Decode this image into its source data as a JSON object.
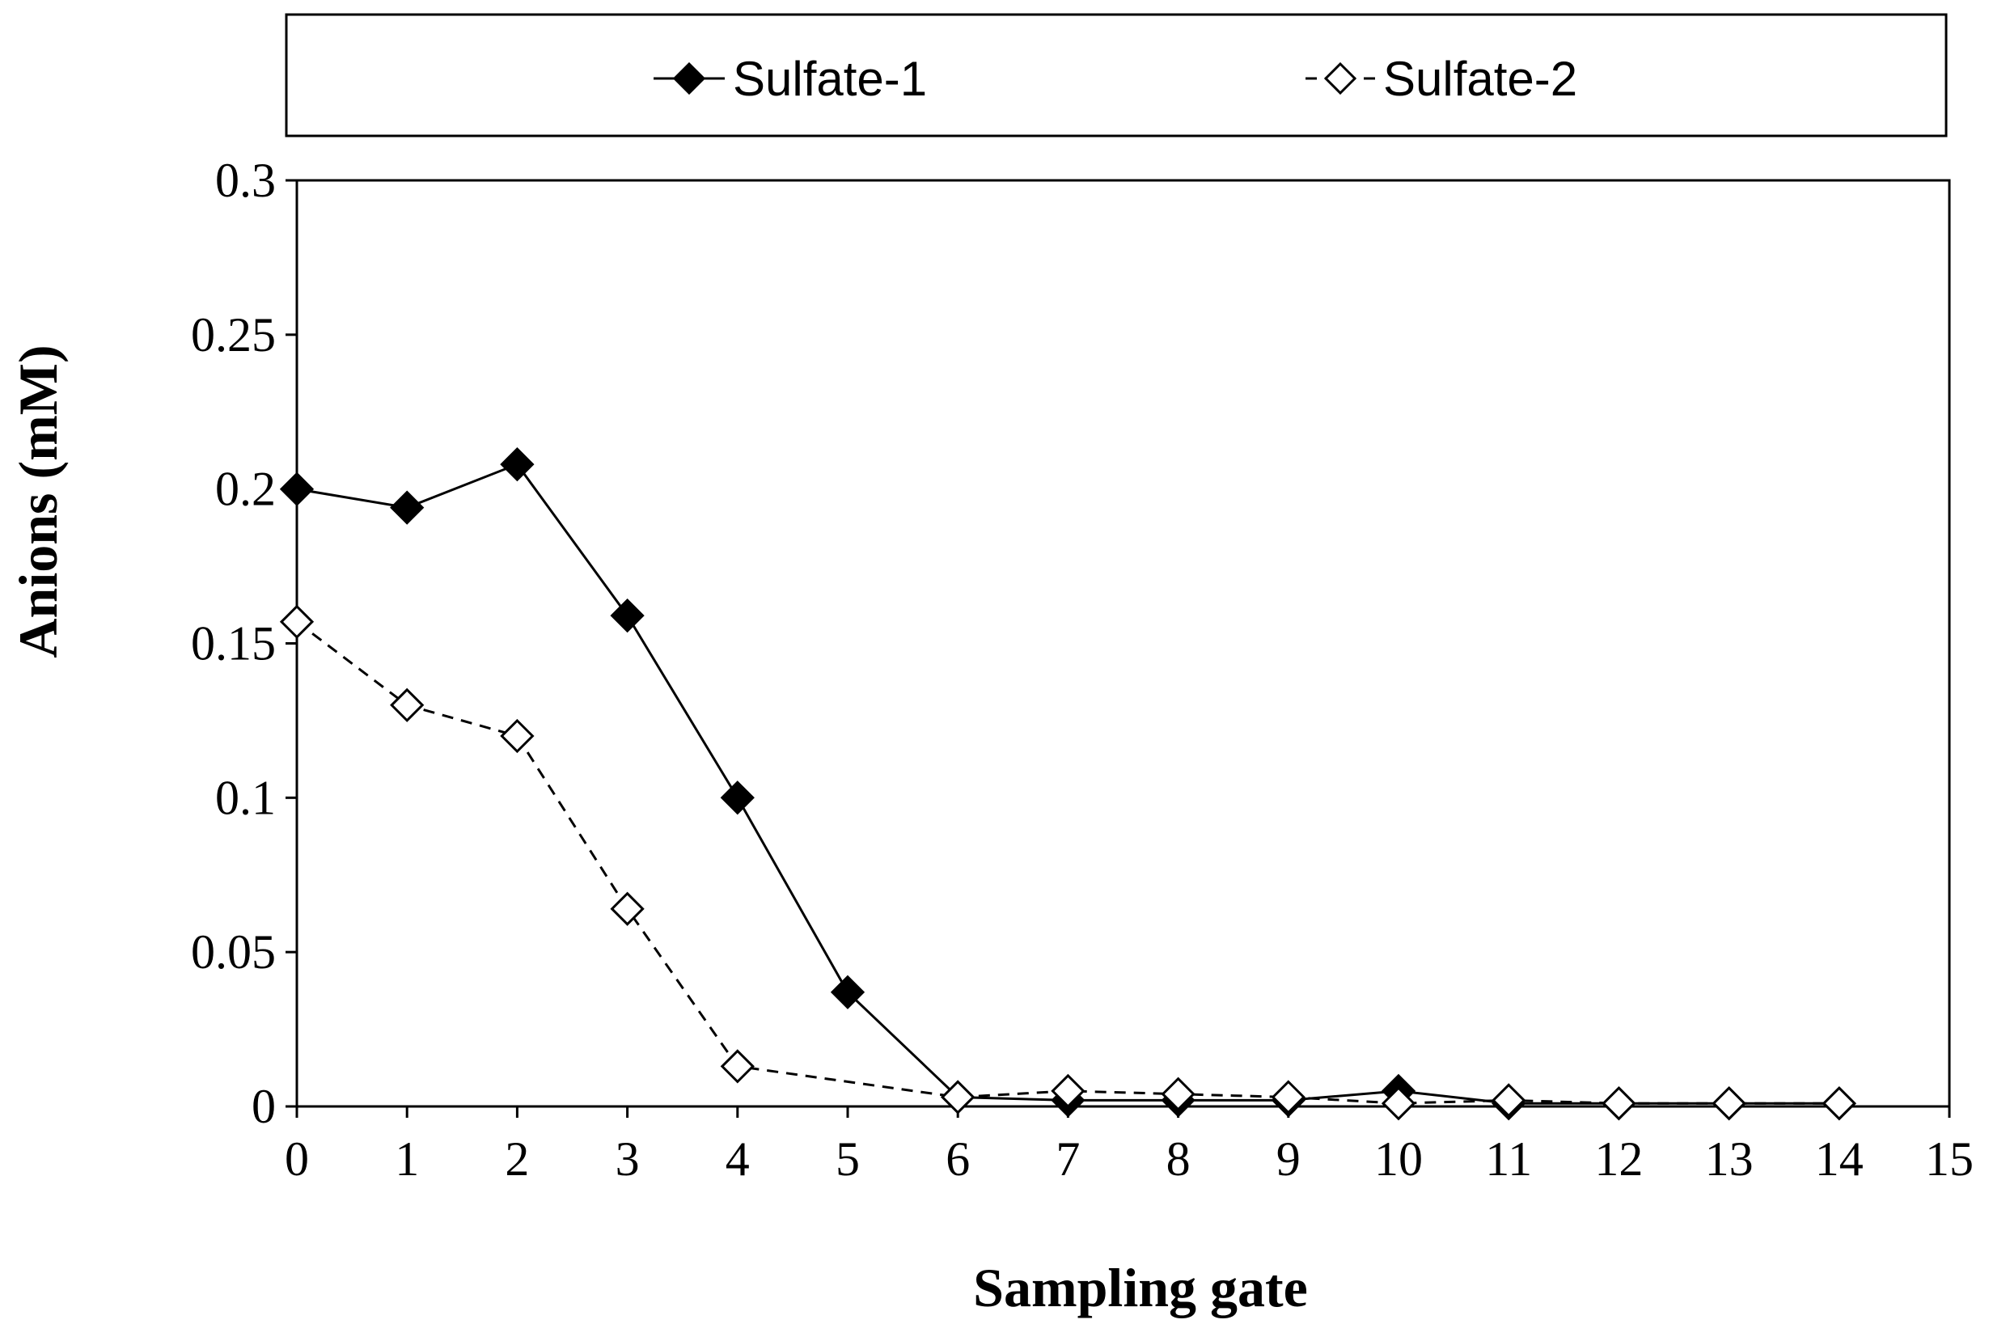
{
  "chart_data": {
    "type": "line",
    "title": "",
    "xlabel": "Sampling gate",
    "ylabel": "Anions (mM)",
    "xlim": [
      0,
      15
    ],
    "ylim": [
      0,
      0.3
    ],
    "x_ticks": [
      0,
      1,
      2,
      3,
      4,
      5,
      6,
      7,
      8,
      9,
      10,
      11,
      12,
      13,
      14,
      15
    ],
    "y_ticks": [
      0,
      0.05,
      0.1,
      0.15,
      0.2,
      0.25,
      0.3
    ],
    "x_tick_labels": [
      "0",
      "1",
      "2",
      "3",
      "4",
      "5",
      "6",
      "7",
      "8",
      "9",
      "10",
      "11",
      "12",
      "13",
      "14",
      "15"
    ],
    "y_tick_labels": [
      "0",
      "0.05",
      "0.1",
      "0.15",
      "0.2",
      "0.25",
      "0.3"
    ],
    "grid": false,
    "legend_position": "top",
    "x": [
      0,
      1,
      2,
      3,
      4,
      5,
      6,
      7,
      8,
      9,
      10,
      11,
      12,
      13,
      14
    ],
    "series": [
      {
        "name": "Sulfate-1",
        "marker": "filled-diamond",
        "line_style": "solid",
        "color": "#000000",
        "values": [
          0.2,
          0.194,
          0.208,
          0.159,
          0.1,
          0.037,
          0.003,
          0.002,
          0.002,
          0.002,
          0.005,
          0.001,
          0.001,
          0.001,
          0.001
        ]
      },
      {
        "name": "Sulfate-2",
        "marker": "open-diamond",
        "line_style": "dashed",
        "color": "#000000",
        "values": [
          0.157,
          0.13,
          0.12,
          0.064,
          0.013,
          null,
          0.003,
          0.005,
          0.004,
          0.003,
          0.001,
          0.002,
          0.001,
          0.001,
          0.001
        ]
      }
    ]
  }
}
